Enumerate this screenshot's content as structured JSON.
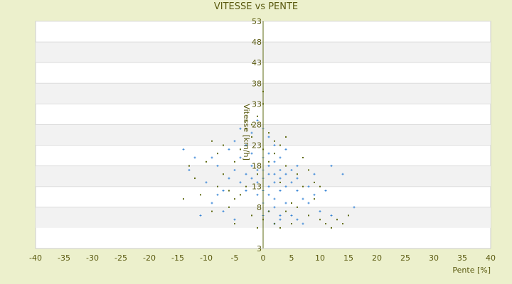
{
  "chart_data": {
    "type": "scatter",
    "title": "VITESSE vs PENTE",
    "xlabel": "Pente [%]",
    "ylabel": "Vitesse [km/h]",
    "xlim": [
      -40,
      40
    ],
    "ylim": [
      -2,
      53
    ],
    "xticks": [
      -40,
      -35,
      -30,
      -25,
      -20,
      -15,
      -10,
      -5,
      0,
      5,
      10,
      15,
      20,
      25,
      30,
      35,
      40
    ],
    "yticks": [
      53,
      48,
      43,
      38,
      33,
      28,
      23,
      18,
      13,
      8
    ],
    "ymin_label": "3",
    "grid": true,
    "banded_background": true,
    "colors": {
      "series1": "#3a86d6",
      "series2": "#5e6a10",
      "axis": "#5e6a10"
    },
    "series": [
      {
        "color": "#3a86d6",
        "points": [
          [
            0,
            15
          ],
          [
            1,
            16
          ],
          [
            2,
            14
          ],
          [
            1,
            18
          ],
          [
            3,
            15
          ],
          [
            0,
            12
          ],
          [
            2,
            19
          ],
          [
            -1,
            17
          ],
          [
            4,
            13
          ],
          [
            1,
            11
          ],
          [
            3,
            17
          ],
          [
            -2,
            15
          ],
          [
            0,
            20
          ],
          [
            2,
            10
          ],
          [
            5,
            14
          ],
          [
            1,
            13
          ],
          [
            -1,
            14
          ],
          [
            3,
            12
          ],
          [
            4,
            16
          ],
          [
            2,
            16
          ],
          [
            0,
            17
          ],
          [
            -2,
            18
          ],
          [
            1,
            21
          ],
          [
            3,
            20
          ],
          [
            -3,
            16
          ],
          [
            5,
            17
          ],
          [
            6,
            12
          ],
          [
            2,
            8
          ],
          [
            0,
            9
          ],
          [
            -1,
            11
          ],
          [
            4,
            9
          ],
          [
            1,
            7
          ],
          [
            6,
            15
          ],
          [
            7,
            10
          ],
          [
            -4,
            14
          ],
          [
            -3,
            12
          ],
          [
            -5,
            17
          ],
          [
            8,
            13
          ],
          [
            3,
            6
          ],
          [
            0,
            6
          ],
          [
            -2,
            21
          ],
          [
            -4,
            20
          ],
          [
            -6,
            15
          ],
          [
            -7,
            12
          ],
          [
            -8,
            18
          ],
          [
            9,
            11
          ],
          [
            10,
            7
          ],
          [
            -9,
            9
          ],
          [
            -10,
            14
          ],
          [
            -12,
            20
          ],
          [
            -13,
            17
          ],
          [
            -14,
            22
          ],
          [
            14,
            16
          ],
          [
            16,
            8
          ],
          [
            12,
            6
          ],
          [
            11,
            12
          ],
          [
            -11,
            6
          ],
          [
            6,
            5
          ],
          [
            -5,
            5
          ],
          [
            2,
            4
          ],
          [
            -3,
            23
          ],
          [
            -5,
            24
          ],
          [
            -2,
            26
          ],
          [
            1,
            25
          ],
          [
            4,
            22
          ],
          [
            6,
            18
          ],
          [
            8,
            9
          ],
          [
            -7,
            7
          ],
          [
            -6,
            22
          ],
          [
            3,
            5
          ],
          [
            5,
            6
          ],
          [
            7,
            4
          ],
          [
            -8,
            11
          ],
          [
            9,
            16
          ],
          [
            12,
            18
          ],
          [
            -1,
            29
          ],
          [
            -4,
            27
          ],
          [
            2,
            23
          ],
          [
            0,
            27
          ],
          [
            -9,
            20
          ]
        ]
      },
      {
        "color": "#5e6a10",
        "points": [
          [
            -1,
            16
          ],
          [
            1,
            19
          ],
          [
            3,
            14
          ],
          [
            -3,
            13
          ],
          [
            0,
            22
          ],
          [
            2,
            24
          ],
          [
            -2,
            25
          ],
          [
            4,
            18
          ],
          [
            -4,
            11
          ],
          [
            5,
            9
          ],
          [
            6,
            16
          ],
          [
            -5,
            19
          ],
          [
            7,
            13
          ],
          [
            -6,
            8
          ],
          [
            8,
            6
          ],
          [
            -7,
            16
          ],
          [
            9,
            10
          ],
          [
            10,
            5
          ],
          [
            -8,
            13
          ],
          [
            11,
            4
          ],
          [
            -9,
            7
          ],
          [
            12,
            3
          ],
          [
            -10,
            19
          ],
          [
            13,
            5
          ],
          [
            -11,
            11
          ],
          [
            -12,
            15
          ],
          [
            -13,
            18
          ],
          [
            -14,
            10
          ],
          [
            14,
            4
          ],
          [
            15,
            6
          ],
          [
            -1,
            30
          ],
          [
            0,
            33
          ],
          [
            -2,
            28
          ],
          [
            1,
            26
          ],
          [
            -3,
            27
          ],
          [
            -4,
            22
          ],
          [
            3,
            23
          ],
          [
            4,
            25
          ],
          [
            2,
            4
          ],
          [
            -1,
            3
          ],
          [
            0,
            5
          ],
          [
            1,
            7
          ],
          [
            -2,
            6
          ],
          [
            3,
            3
          ],
          [
            5,
            4
          ],
          [
            -5,
            4
          ],
          [
            6,
            8
          ],
          [
            -6,
            12
          ],
          [
            7,
            20
          ],
          [
            8,
            17
          ],
          [
            9,
            14
          ],
          [
            -7,
            23
          ],
          [
            -8,
            21
          ],
          [
            -9,
            24
          ],
          [
            -3,
            29
          ],
          [
            0,
            36
          ],
          [
            2,
            21
          ],
          [
            -5,
            10
          ],
          [
            4,
            7
          ],
          [
            10,
            13
          ]
        ]
      }
    ]
  }
}
